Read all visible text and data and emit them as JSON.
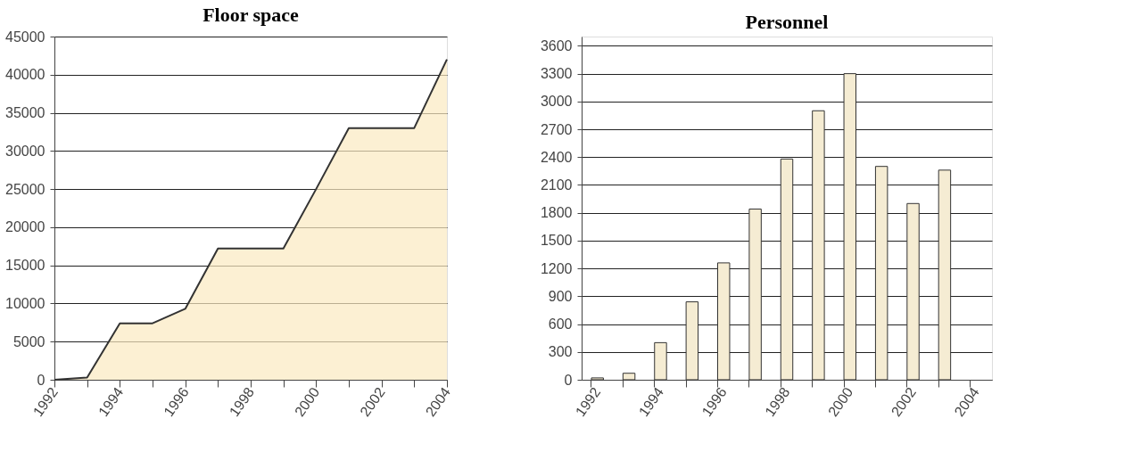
{
  "chart_data": [
    {
      "type": "area",
      "title": "Floor space",
      "x": [
        1992,
        1993,
        1994,
        1995,
        1996,
        1997,
        1998,
        1999,
        2000,
        2001,
        2002,
        2003,
        2004
      ],
      "values": [
        0,
        300,
        7400,
        7400,
        9300,
        17200,
        17200,
        17200,
        25000,
        33000,
        33000,
        33000,
        42000
      ],
      "color": "#fbeac0",
      "xlim": [
        1992,
        2004
      ],
      "xticks": [
        1992,
        {
          "value": 1993,
          "label": null
        },
        1994,
        {
          "value": 1995,
          "label": null
        },
        1996,
        {
          "value": 1997,
          "label": null
        },
        1998,
        {
          "value": 1999,
          "label": null
        },
        2000,
        {
          "value": 2001,
          "label": null
        },
        2002,
        {
          "value": 2003,
          "label": null
        },
        2004
      ],
      "ylim": [
        0,
        45000
      ],
      "yticks": [
        0,
        5000,
        10000,
        15000,
        20000,
        25000,
        30000,
        35000,
        40000,
        45000
      ],
      "grid": "y"
    },
    {
      "type": "bar",
      "title": "Personnel",
      "categories": [
        "1992",
        null,
        "1994",
        null,
        "1996",
        null,
        "1998",
        null,
        "2000",
        null,
        "2002",
        null,
        "2004"
      ],
      "values": [
        20,
        70,
        400,
        840,
        1260,
        1840,
        2380,
        2900,
        3300,
        2300,
        1900,
        2260,
        null
      ],
      "color": "#f5ecd3",
      "ylim": [
        0,
        3700
      ],
      "yticks": [
        0,
        300,
        600,
        900,
        1200,
        1500,
        1800,
        2100,
        2400,
        2700,
        3000,
        3300,
        3600
      ],
      "grid": "y"
    }
  ]
}
